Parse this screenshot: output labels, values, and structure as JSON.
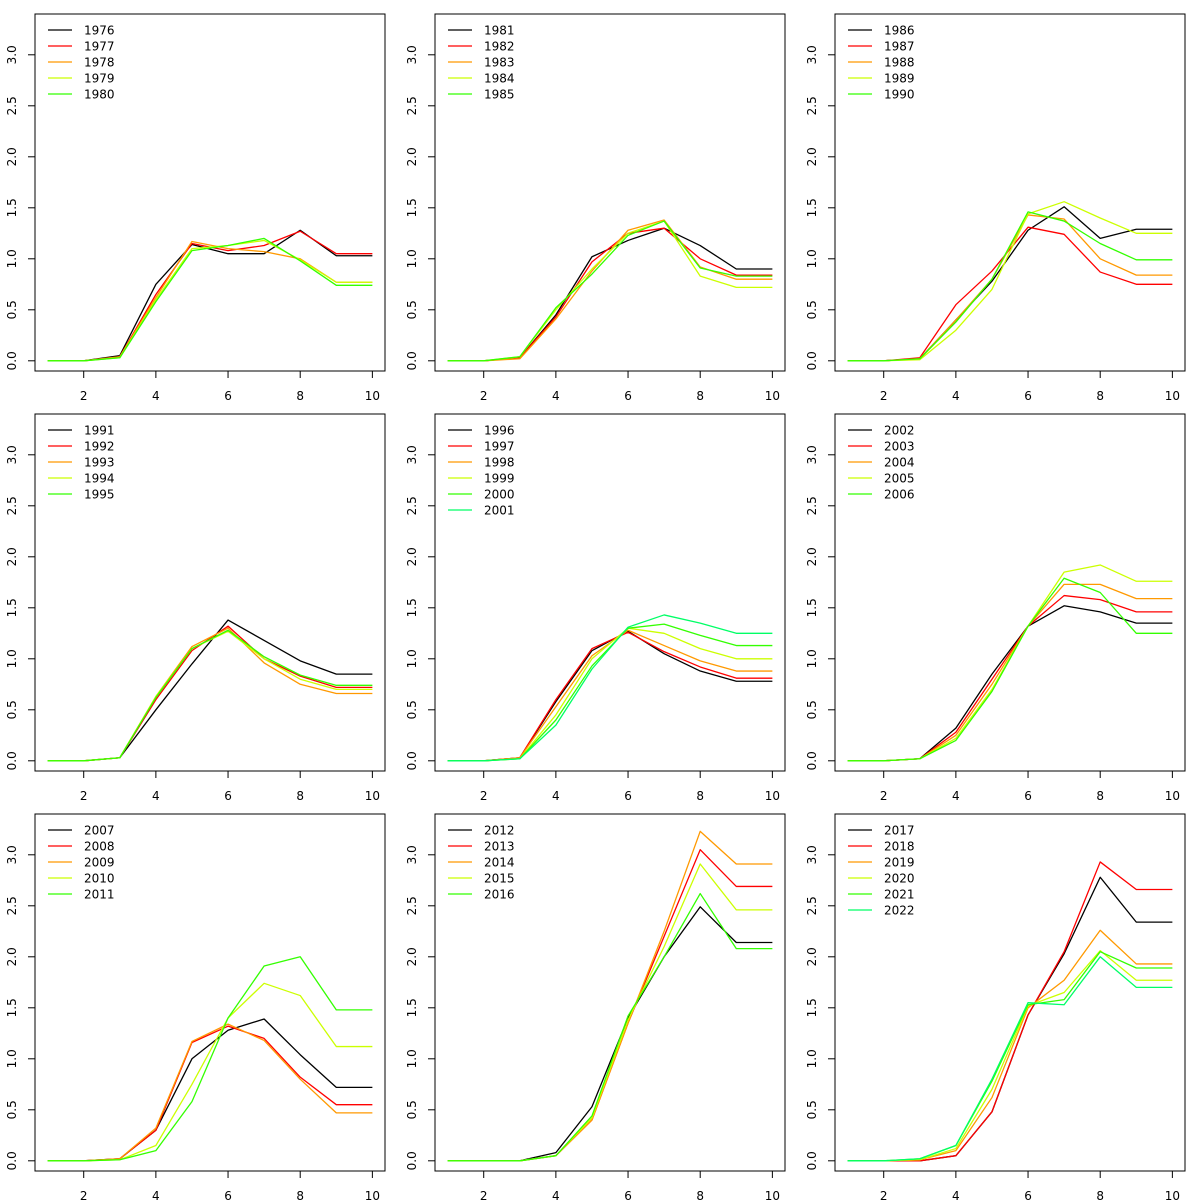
{
  "chart_data": [
    {
      "type": "line",
      "x": [
        1,
        2,
        3,
        4,
        5,
        6,
        7,
        8,
        9,
        10
      ],
      "xticks": [
        2,
        4,
        6,
        8,
        10
      ],
      "yticks": [
        "0.0",
        "0.5",
        "1.0",
        "1.5",
        "2.0",
        "2.5",
        "3.0"
      ],
      "xlim": [
        0.65,
        10.35
      ],
      "ylim": [
        -0.1,
        3.4
      ],
      "grid": false,
      "legend_position": "top-left",
      "series": [
        {
          "name": "1976",
          "color": "#000000",
          "values": [
            0,
            0,
            0.05,
            0.75,
            1.14,
            1.05,
            1.05,
            1.28,
            1.03,
            1.03
          ]
        },
        {
          "name": "1977",
          "color": "#ff0000",
          "values": [
            0,
            0,
            0.04,
            0.65,
            1.15,
            1.08,
            1.13,
            1.27,
            1.05,
            1.05
          ]
        },
        {
          "name": "1978",
          "color": "#ff9900",
          "values": [
            0,
            0,
            0.04,
            0.62,
            1.17,
            1.1,
            1.07,
            1.0,
            0.77,
            0.77
          ]
        },
        {
          "name": "1979",
          "color": "#ccff00",
          "values": [
            0,
            0,
            0.03,
            0.6,
            1.1,
            1.13,
            1.18,
            0.99,
            0.77,
            0.77
          ]
        },
        {
          "name": "1980",
          "color": "#33ff00",
          "values": [
            0,
            0,
            0.03,
            0.58,
            1.08,
            1.13,
            1.2,
            0.98,
            0.74,
            0.74
          ]
        }
      ]
    },
    {
      "type": "line",
      "x": [
        1,
        2,
        3,
        4,
        5,
        6,
        7,
        8,
        9,
        10
      ],
      "xticks": [
        2,
        4,
        6,
        8,
        10
      ],
      "yticks": [
        "0.0",
        "0.5",
        "1.0",
        "1.5",
        "2.0",
        "2.5",
        "3.0"
      ],
      "xlim": [
        0.65,
        10.35
      ],
      "ylim": [
        -0.1,
        3.4
      ],
      "grid": false,
      "legend_position": "top-left",
      "series": [
        {
          "name": "1981",
          "color": "#000000",
          "values": [
            0,
            0,
            0.03,
            0.45,
            1.02,
            1.18,
            1.3,
            1.13,
            0.9,
            0.9
          ]
        },
        {
          "name": "1982",
          "color": "#ff0000",
          "values": [
            0,
            0,
            0.03,
            0.43,
            0.97,
            1.25,
            1.3,
            1.0,
            0.84,
            0.84
          ]
        },
        {
          "name": "1983",
          "color": "#ff9900",
          "values": [
            0,
            0,
            0.02,
            0.41,
            0.88,
            1.28,
            1.38,
            0.92,
            0.8,
            0.8
          ]
        },
        {
          "name": "1984",
          "color": "#ccff00",
          "values": [
            0,
            0,
            0.04,
            0.5,
            0.9,
            1.25,
            1.37,
            0.83,
            0.72,
            0.72
          ]
        },
        {
          "name": "1985",
          "color": "#33ff00",
          "values": [
            0,
            0,
            0.04,
            0.52,
            0.85,
            1.23,
            1.37,
            0.91,
            0.83,
            0.83
          ]
        }
      ]
    },
    {
      "type": "line",
      "x": [
        1,
        2,
        3,
        4,
        5,
        6,
        7,
        8,
        9,
        10
      ],
      "xticks": [
        2,
        4,
        6,
        8,
        10
      ],
      "yticks": [
        "0.0",
        "0.5",
        "1.0",
        "1.5",
        "2.0",
        "2.5",
        "3.0"
      ],
      "xlim": [
        0.65,
        10.35
      ],
      "ylim": [
        -0.1,
        3.4
      ],
      "grid": false,
      "legend_position": "top-left",
      "series": [
        {
          "name": "1986",
          "color": "#000000",
          "values": [
            0,
            0,
            0.02,
            0.4,
            0.78,
            1.28,
            1.51,
            1.2,
            1.29,
            1.29
          ]
        },
        {
          "name": "1987",
          "color": "#ff0000",
          "values": [
            0,
            0,
            0.03,
            0.55,
            0.88,
            1.31,
            1.24,
            0.87,
            0.75,
            0.75
          ]
        },
        {
          "name": "1988",
          "color": "#ff9900",
          "values": [
            0,
            0,
            0.02,
            0.4,
            0.8,
            1.43,
            1.39,
            1.0,
            0.84,
            0.84
          ]
        },
        {
          "name": "1989",
          "color": "#ccff00",
          "values": [
            0,
            0,
            0.01,
            0.3,
            0.7,
            1.44,
            1.56,
            1.4,
            1.25,
            1.25
          ]
        },
        {
          "name": "1990",
          "color": "#33ff00",
          "values": [
            0,
            0,
            0.02,
            0.38,
            0.8,
            1.46,
            1.37,
            1.15,
            0.99,
            0.99
          ]
        }
      ]
    },
    {
      "type": "line",
      "x": [
        1,
        2,
        3,
        4,
        5,
        6,
        7,
        8,
        9,
        10
      ],
      "xticks": [
        2,
        4,
        6,
        8,
        10
      ],
      "yticks": [
        "0.0",
        "0.5",
        "1.0",
        "1.5",
        "2.0",
        "2.5",
        "3.0"
      ],
      "xlim": [
        0.65,
        10.35
      ],
      "ylim": [
        -0.1,
        3.4
      ],
      "grid": false,
      "legend_position": "top-left",
      "series": [
        {
          "name": "1991",
          "color": "#000000",
          "values": [
            0,
            0,
            0.03,
            0.5,
            0.95,
            1.38,
            1.18,
            0.98,
            0.85,
            0.85
          ]
        },
        {
          "name": "1992",
          "color": "#ff0000",
          "values": [
            0,
            0,
            0.03,
            0.6,
            1.08,
            1.32,
            1.0,
            0.83,
            0.72,
            0.72
          ]
        },
        {
          "name": "1993",
          "color": "#ff9900",
          "values": [
            0,
            0,
            0.03,
            0.63,
            1.12,
            1.3,
            0.96,
            0.75,
            0.66,
            0.66
          ]
        },
        {
          "name": "1994",
          "color": "#ccff00",
          "values": [
            0,
            0,
            0.03,
            0.63,
            1.1,
            1.27,
            1.0,
            0.8,
            0.7,
            0.7
          ]
        },
        {
          "name": "1995",
          "color": "#33ff00",
          "values": [
            0,
            0,
            0.03,
            0.62,
            1.1,
            1.28,
            1.02,
            0.84,
            0.74,
            0.74
          ]
        }
      ]
    },
    {
      "type": "line",
      "x": [
        1,
        2,
        3,
        4,
        5,
        6,
        7,
        8,
        9,
        10
      ],
      "xticks": [
        2,
        4,
        6,
        8,
        10
      ],
      "yticks": [
        "0.0",
        "0.5",
        "1.0",
        "1.5",
        "2.0",
        "2.5",
        "3.0"
      ],
      "xlim": [
        0.65,
        10.35
      ],
      "ylim": [
        -0.1,
        3.4
      ],
      "grid": false,
      "legend_position": "top-left",
      "series": [
        {
          "name": "1996",
          "color": "#000000",
          "values": [
            0,
            0,
            0.03,
            0.58,
            1.08,
            1.27,
            1.05,
            0.88,
            0.78,
            0.78
          ]
        },
        {
          "name": "1997",
          "color": "#ff0000",
          "values": [
            0,
            0,
            0.03,
            0.6,
            1.1,
            1.26,
            1.07,
            0.92,
            0.81,
            0.81
          ]
        },
        {
          "name": "1998",
          "color": "#ff9900",
          "values": [
            0,
            0,
            0.03,
            0.53,
            1.03,
            1.28,
            1.13,
            0.98,
            0.88,
            0.88
          ]
        },
        {
          "name": "1999",
          "color": "#ccff00",
          "values": [
            0,
            0,
            0.02,
            0.45,
            1.0,
            1.3,
            1.25,
            1.1,
            1.0,
            1.0
          ]
        },
        {
          "name": "2000",
          "color": "#33ff00",
          "values": [
            0,
            0,
            0.02,
            0.4,
            0.93,
            1.3,
            1.34,
            1.23,
            1.13,
            1.13
          ]
        },
        {
          "name": "2001",
          "color": "#00ff66",
          "values": [
            0,
            0,
            0.02,
            0.35,
            0.9,
            1.31,
            1.43,
            1.35,
            1.25,
            1.25
          ]
        }
      ]
    },
    {
      "type": "line",
      "x": [
        1,
        2,
        3,
        4,
        5,
        6,
        7,
        8,
        9,
        10
      ],
      "xticks": [
        2,
        4,
        6,
        8,
        10
      ],
      "yticks": [
        "0.0",
        "0.5",
        "1.0",
        "1.5",
        "2.0",
        "2.5",
        "3.0"
      ],
      "xlim": [
        0.65,
        10.35
      ],
      "ylim": [
        -0.1,
        3.4
      ],
      "grid": false,
      "legend_position": "top-left",
      "series": [
        {
          "name": "2002",
          "color": "#000000",
          "values": [
            0,
            0,
            0.02,
            0.32,
            0.85,
            1.32,
            1.52,
            1.46,
            1.35,
            1.35
          ]
        },
        {
          "name": "2003",
          "color": "#ff0000",
          "values": [
            0,
            0,
            0.02,
            0.28,
            0.8,
            1.32,
            1.62,
            1.58,
            1.46,
            1.46
          ]
        },
        {
          "name": "2004",
          "color": "#ff9900",
          "values": [
            0,
            0,
            0.02,
            0.25,
            0.75,
            1.32,
            1.73,
            1.73,
            1.59,
            1.59
          ]
        },
        {
          "name": "2005",
          "color": "#ccff00",
          "values": [
            0,
            0,
            0.02,
            0.22,
            0.7,
            1.32,
            1.85,
            1.92,
            1.76,
            1.76
          ]
        },
        {
          "name": "2006",
          "color": "#33ff00",
          "values": [
            0,
            0,
            0.02,
            0.2,
            0.68,
            1.32,
            1.79,
            1.65,
            1.25,
            1.25
          ]
        }
      ]
    },
    {
      "type": "line",
      "x": [
        1,
        2,
        3,
        4,
        5,
        6,
        7,
        8,
        9,
        10
      ],
      "xticks": [
        2,
        4,
        6,
        8,
        10
      ],
      "yticks": [
        "0.0",
        "0.5",
        "1.0",
        "1.5",
        "2.0",
        "2.5",
        "3.0"
      ],
      "xlim": [
        0.65,
        10.35
      ],
      "ylim": [
        -0.1,
        3.4
      ],
      "grid": false,
      "legend_position": "top-left",
      "series": [
        {
          "name": "2007",
          "color": "#000000",
          "values": [
            0,
            0,
            0.02,
            0.3,
            1.0,
            1.28,
            1.39,
            1.04,
            0.72,
            0.72
          ]
        },
        {
          "name": "2008",
          "color": "#ff0000",
          "values": [
            0,
            0,
            0.02,
            0.3,
            1.16,
            1.32,
            1.2,
            0.82,
            0.55,
            0.55
          ]
        },
        {
          "name": "2009",
          "color": "#ff9900",
          "values": [
            0,
            0,
            0.02,
            0.32,
            1.17,
            1.34,
            1.18,
            0.8,
            0.47,
            0.47
          ]
        },
        {
          "name": "2010",
          "color": "#ccff00",
          "values": [
            0,
            0,
            0.01,
            0.15,
            0.75,
            1.4,
            1.74,
            1.62,
            1.12,
            1.12
          ]
        },
        {
          "name": "2011",
          "color": "#33ff00",
          "values": [
            0,
            0,
            0.01,
            0.1,
            0.58,
            1.4,
            1.91,
            2.0,
            1.48,
            1.48
          ]
        }
      ]
    },
    {
      "type": "line",
      "x": [
        1,
        2,
        3,
        4,
        5,
        6,
        7,
        8,
        9,
        10
      ],
      "xticks": [
        2,
        4,
        6,
        8,
        10
      ],
      "yticks": [
        "0.0",
        "0.5",
        "1.0",
        "1.5",
        "2.0",
        "2.5",
        "3.0"
      ],
      "xlim": [
        0.65,
        10.35
      ],
      "ylim": [
        -0.1,
        3.4
      ],
      "grid": false,
      "legend_position": "top-left",
      "series": [
        {
          "name": "2012",
          "color": "#000000",
          "values": [
            0,
            0,
            0,
            0.08,
            0.53,
            1.4,
            2.0,
            2.49,
            2.14,
            2.14
          ]
        },
        {
          "name": "2013",
          "color": "#ff0000",
          "values": [
            0,
            0,
            0,
            0.05,
            0.4,
            1.35,
            2.2,
            3.05,
            2.69,
            2.69
          ]
        },
        {
          "name": "2014",
          "color": "#ff9900",
          "values": [
            0,
            0,
            0,
            0.05,
            0.4,
            1.35,
            2.25,
            3.23,
            2.91,
            2.91
          ]
        },
        {
          "name": "2015",
          "color": "#ccff00",
          "values": [
            0,
            0,
            0,
            0.05,
            0.42,
            1.38,
            2.1,
            2.91,
            2.46,
            2.46
          ]
        },
        {
          "name": "2016",
          "color": "#33ff00",
          "values": [
            0,
            0,
            0,
            0.05,
            0.44,
            1.42,
            2.0,
            2.62,
            2.08,
            2.08
          ]
        }
      ]
    },
    {
      "type": "line",
      "x": [
        1,
        2,
        3,
        4,
        5,
        6,
        7,
        8,
        9,
        10
      ],
      "xticks": [
        2,
        4,
        6,
        8,
        10
      ],
      "yticks": [
        "0.0",
        "0.5",
        "1.0",
        "1.5",
        "2.0",
        "2.5",
        "3.0"
      ],
      "xlim": [
        0.65,
        10.35
      ],
      "ylim": [
        -0.1,
        3.4
      ],
      "grid": false,
      "legend_position": "top-left",
      "series": [
        {
          "name": "2017",
          "color": "#000000",
          "values": [
            0,
            0,
            0,
            0.05,
            0.48,
            1.43,
            2.03,
            2.78,
            2.34,
            2.34
          ]
        },
        {
          "name": "2018",
          "color": "#ff0000",
          "values": [
            0,
            0,
            0,
            0.05,
            0.48,
            1.43,
            2.05,
            2.93,
            2.66,
            2.66
          ]
        },
        {
          "name": "2019",
          "color": "#ff9900",
          "values": [
            0,
            0,
            0.01,
            0.1,
            0.62,
            1.5,
            1.77,
            2.26,
            1.93,
            1.93
          ]
        },
        {
          "name": "2020",
          "color": "#ccff00",
          "values": [
            0,
            0,
            0.01,
            0.12,
            0.7,
            1.52,
            1.65,
            2.06,
            1.77,
            1.77
          ]
        },
        {
          "name": "2021",
          "color": "#33ff00",
          "values": [
            0,
            0,
            0.02,
            0.15,
            0.78,
            1.53,
            1.58,
            2.05,
            1.89,
            1.89
          ]
        },
        {
          "name": "2022",
          "color": "#00ff66",
          "values": [
            0,
            0,
            0.02,
            0.15,
            0.8,
            1.55,
            1.53,
            2.0,
            1.7,
            1.7
          ]
        }
      ]
    }
  ]
}
